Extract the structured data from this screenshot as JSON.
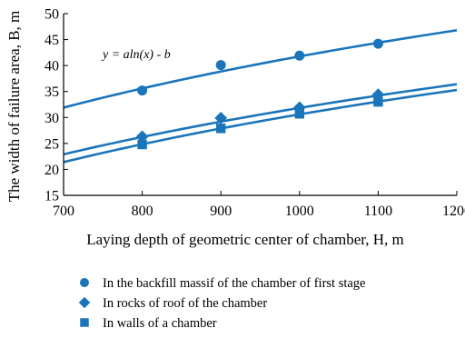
{
  "chart_data": {
    "type": "scatter",
    "title": "",
    "xlabel": "Laying depth of geometric center of chamber, H, m",
    "ylabel": "The width of failure area, B, m",
    "xlim": [
      700,
      1200
    ],
    "ylim": [
      15,
      50
    ],
    "x_ticks": [
      700,
      800,
      900,
      1000,
      1100,
      1200
    ],
    "y_ticks": [
      15,
      20,
      25,
      30,
      35,
      40,
      45,
      50
    ],
    "grid": false,
    "annotation": "y = aln(x) - b",
    "colors": {
      "series": "#1b75bb",
      "axis": "#000000"
    },
    "series": [
      {
        "name": "In the backfill massif of the chamber of first stage",
        "marker": "circle",
        "x": [
          800,
          900,
          1000,
          1100
        ],
        "y": [
          35.2,
          40.1,
          41.9,
          44.2
        ],
        "fit": {
          "x": [
            700,
            1200
          ],
          "y": [
            31.9,
            46.8
          ]
        }
      },
      {
        "name": "In rocks of roof of the chamber",
        "marker": "diamond",
        "x": [
          800,
          900,
          1000,
          1100
        ],
        "y": [
          26.3,
          29.9,
          31.9,
          34.4
        ],
        "fit": {
          "x": [
            700,
            1200
          ],
          "y": [
            22.9,
            36.4
          ]
        }
      },
      {
        "name": "In walls of a chamber",
        "marker": "square",
        "x": [
          800,
          900,
          1000,
          1100
        ],
        "y": [
          24.8,
          27.9,
          30.7,
          33.0
        ],
        "fit": {
          "x": [
            700,
            1200
          ],
          "y": [
            21.4,
            35.3
          ]
        }
      }
    ]
  }
}
